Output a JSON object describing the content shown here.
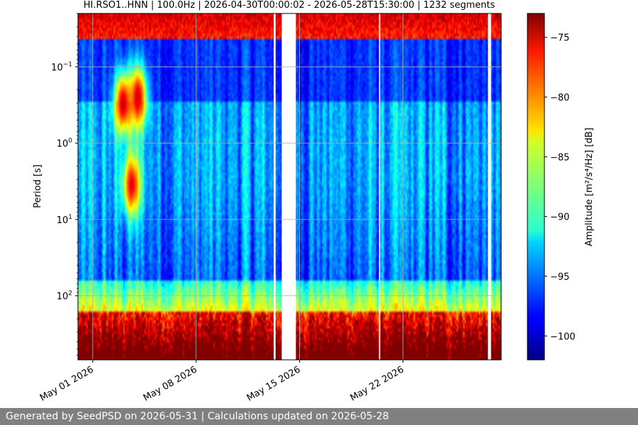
{
  "chart_data": {
    "type": "heatmap",
    "title": "HI.RSO1..HNN | 100.0Hz | 2026-04-30T00:00:02 - 2026-05-28T15:30:00 | 1232 segments",
    "ylabel": "Period [s]",
    "colorbar_label": "Amplitude [m²/s⁴/Hz] [dB]",
    "y_scale": "log",
    "y_inverted": true,
    "y_range": [
      0.02,
      690
    ],
    "y_ticks": [
      {
        "value": 0.1,
        "base": "10",
        "exp": "−1"
      },
      {
        "value": 1,
        "base": "10",
        "exp": "0"
      },
      {
        "value": 10,
        "base": "10",
        "exp": "1"
      },
      {
        "value": 100,
        "base": "10",
        "exp": "2"
      }
    ],
    "x_start": "2026-04-30T00:00:02",
    "x_end": "2026-05-28T15:30:00",
    "x_ticks": [
      {
        "date": "2026-05-01",
        "label": "May 01 2026"
      },
      {
        "date": "2026-05-08",
        "label": "May 08 2026"
      },
      {
        "date": "2026-05-15",
        "label": "May 15 2026"
      },
      {
        "date": "2026-05-22",
        "label": "May 22 2026"
      }
    ],
    "grid": true,
    "color_range": [
      -102,
      -73
    ],
    "colorbar_ticks": [
      {
        "value": -75,
        "label": "−75"
      },
      {
        "value": -80,
        "label": "−80"
      },
      {
        "value": -85,
        "label": "−85"
      },
      {
        "value": -90,
        "label": "−90"
      },
      {
        "value": -95,
        "label": "−95"
      },
      {
        "value": -100,
        "label": "−100"
      }
    ],
    "colormap": "jet",
    "gaps": [
      {
        "start": "2026-05-13T06:00:00",
        "end": "2026-05-13T09:00:00"
      },
      {
        "start": "2026-05-13T19:00:00",
        "end": "2026-05-14T18:00:00"
      },
      {
        "start": "2026-05-20T09:00:00",
        "end": "2026-05-20T11:00:00"
      },
      {
        "start": "2026-05-27T18:00:00",
        "end": "2026-05-27T23:00:00"
      }
    ],
    "features": [
      {
        "period": 0.03,
        "amplitude": -78,
        "description": "persistent high-frequency band"
      },
      {
        "period": 0.3,
        "date": "2026-05-03",
        "amplitude": -75
      },
      {
        "period": 0.25,
        "date": "2026-05-04",
        "amplitude": -75
      },
      {
        "period": 3.5,
        "date": "2026-05-03T14:00:00",
        "amplitude": -76
      },
      {
        "period": 400,
        "amplitude": -76,
        "description": "long-period band"
      }
    ]
  },
  "footer": {
    "text": "Generated by SeedPSD on 2026-05-31 | Calculations updated on 2026-05-28"
  }
}
